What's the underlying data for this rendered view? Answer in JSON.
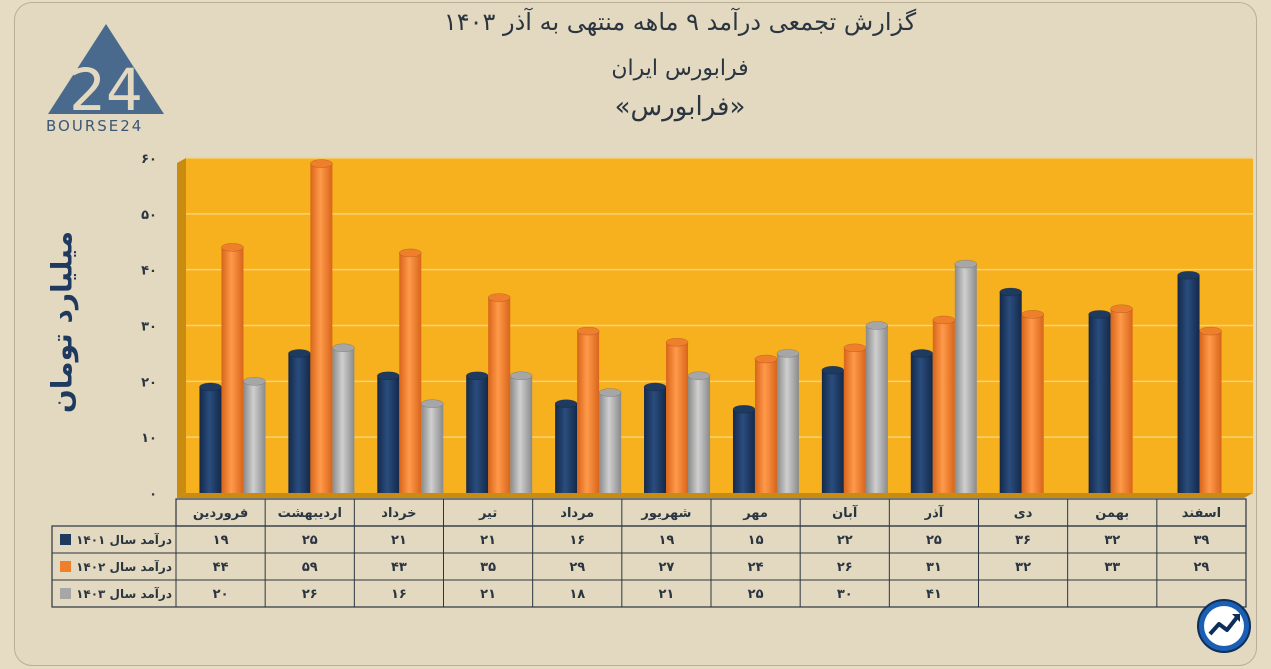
{
  "header": {
    "line1": "گزارش تجمعی درآمد ۹ ماهه منتهی به آذر ۱۴۰۳",
    "line2": "فرابورس ایران",
    "line3": "«فرابورس»"
  },
  "logo": {
    "text": "BOURSE24",
    "mark": "24"
  },
  "chart_data": {
    "type": "bar",
    "ylabel": "میلیارد تومان",
    "ylim": [
      0,
      60
    ],
    "yticks": [
      "۰",
      "۱۰",
      "۲۰",
      "۳۰",
      "۴۰",
      "۵۰",
      "۶۰"
    ],
    "ytick_values": [
      0,
      10,
      20,
      30,
      40,
      50,
      60
    ],
    "grid": true,
    "categories": [
      "فروردین",
      "اردیبهشت",
      "خرداد",
      "تیر",
      "مرداد",
      "شهریور",
      "مهر",
      "آبان",
      "آذر",
      "دی",
      "بهمن",
      "اسفند"
    ],
    "series": [
      {
        "name": "درآمد سال ۱۴۰۱",
        "color": "#1f3a5f",
        "values": [
          19,
          25,
          21,
          21,
          16,
          19,
          15,
          22,
          25,
          36,
          32,
          39
        ],
        "labels": [
          "۱۹",
          "۲۵",
          "۲۱",
          "۲۱",
          "۱۶",
          "۱۹",
          "۱۵",
          "۲۲",
          "۲۵",
          "۳۶",
          "۳۲",
          "۳۹"
        ]
      },
      {
        "name": "درآمد سال ۱۴۰۲",
        "color": "#f07f2c",
        "values": [
          44,
          59,
          43,
          35,
          29,
          27,
          24,
          26,
          31,
          32,
          33,
          29
        ],
        "labels": [
          "۴۴",
          "۵۹",
          "۴۳",
          "۳۵",
          "۲۹",
          "۲۷",
          "۲۴",
          "۲۶",
          "۳۱",
          "۳۲",
          "۳۳",
          "۲۹"
        ]
      },
      {
        "name": "درآمد سال ۱۴۰۳",
        "color": "#a6a6a6",
        "values": [
          20,
          26,
          16,
          21,
          18,
          21,
          25,
          30,
          41,
          null,
          null,
          null
        ],
        "labels": [
          "۲۰",
          "۲۶",
          "۱۶",
          "۲۱",
          "۱۸",
          "۲۱",
          "۲۵",
          "۳۰",
          "۴۱",
          "",
          "",
          ""
        ]
      }
    ],
    "plot_background": "#f7b01e",
    "frame_background": "#e3d9c1"
  }
}
